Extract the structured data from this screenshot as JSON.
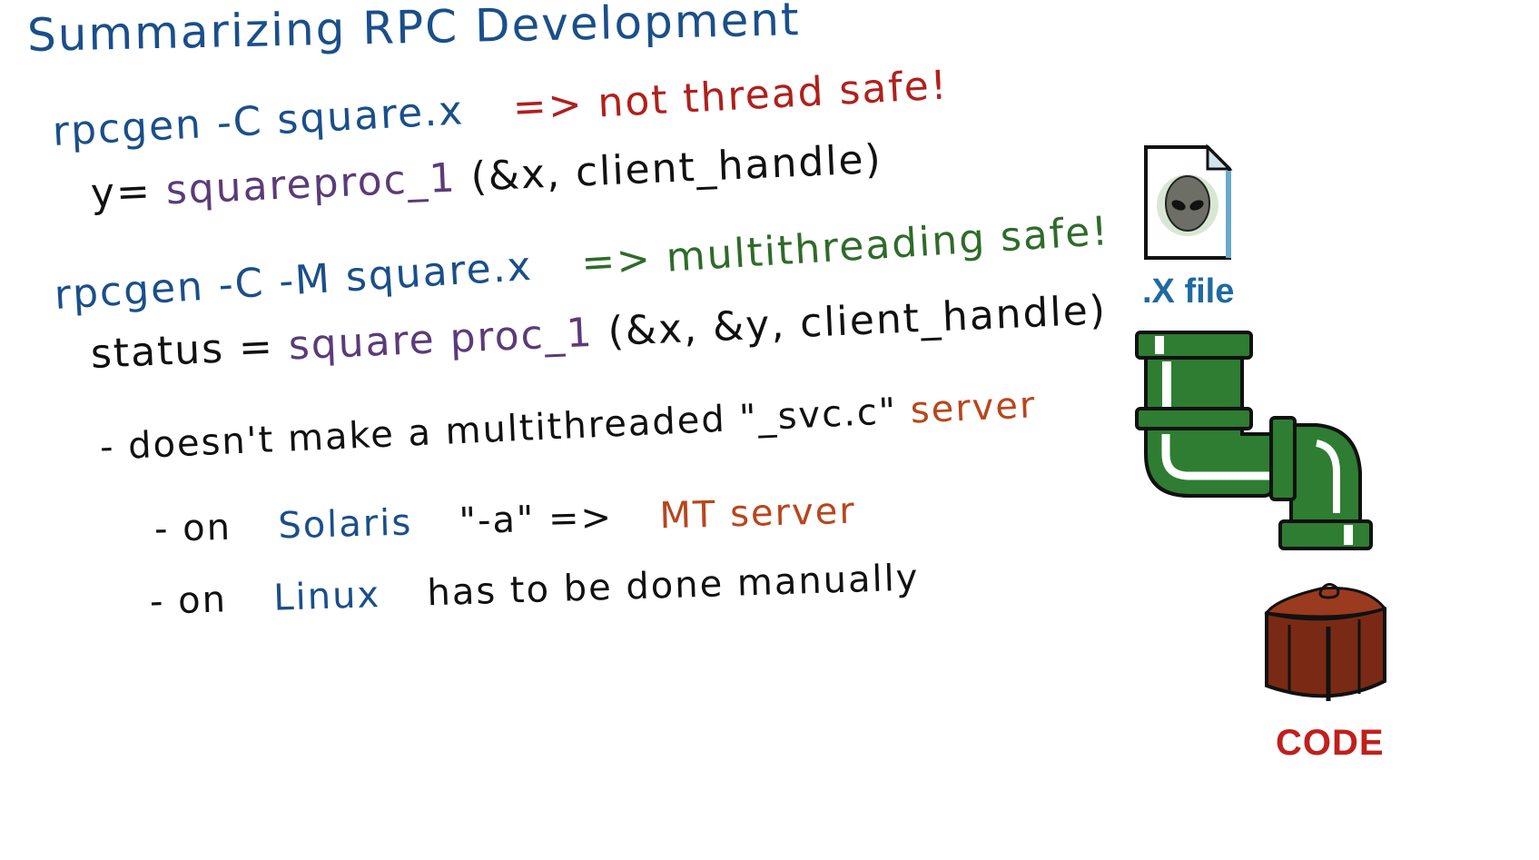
{
  "title": "Summarizing RPC Development",
  "line1": {
    "cmd": "rpcgen -C square.x",
    "arrow": "=>",
    "note": "not thread safe!"
  },
  "line2": {
    "lhs": "y=",
    "fn": "squareproc_1",
    "args": "(&x, client_handle)"
  },
  "line3": {
    "cmd": "rpcgen -C -M square.x",
    "arrow": "=>",
    "note": "multithreading safe!"
  },
  "line4": {
    "lhs": "status =",
    "fn": "square proc_1",
    "args": "(&x, &y, client_handle)"
  },
  "line5": {
    "text": "- doesn't make a multithreaded \"_svc.c\"",
    "tail": "server"
  },
  "line6": {
    "dash": "- on",
    "os": "Solaris",
    "flag": "\"-a\" =>",
    "result": "MT server"
  },
  "line7": {
    "dash": "- on",
    "os": "Linux",
    "text": "has to be done manually"
  },
  "graphics": {
    "xfile_label": ".X file",
    "code_label": "CODE",
    "xfile_icon": "alien-file-icon",
    "pipe_icon": "green-pipe-icon",
    "code_icon": "package-box-icon"
  },
  "colors": {
    "blue": "#1a4f8a",
    "red": "#b0201c",
    "green": "#2f6b2a",
    "purple": "#5b3b78",
    "orange": "#b8461c",
    "pipe": "#2e7d32",
    "box": "#7a2a14"
  }
}
